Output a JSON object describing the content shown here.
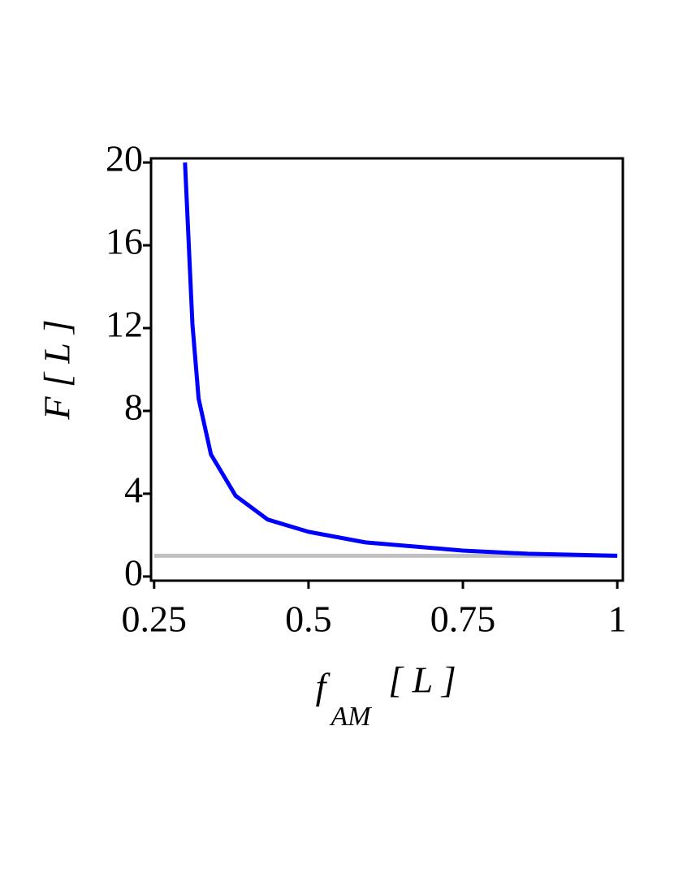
{
  "chart_data": {
    "type": "line",
    "ylabel": "F [ L ]",
    "xlabel": "f",
    "xlabel_sub": "AM",
    "xlabel_unit": "[ L ]",
    "x": [
      0.3,
      0.312,
      0.322,
      0.342,
      0.382,
      0.434,
      0.5,
      0.592,
      0.75,
      0.855,
      1.0
    ],
    "series": [
      {
        "color": "#0000ff",
        "values": [
          20,
          12.2,
          8.6,
          5.9,
          3.9,
          2.75,
          2.16,
          1.65,
          1.25,
          1.1,
          1.0
        ]
      }
    ],
    "reference": {
      "color": "#c0c0c0",
      "x": [
        0.25,
        1.0
      ],
      "values": [
        1,
        1
      ]
    },
    "xlim": [
      0.245,
      1.009
    ],
    "ylim": [
      -0.2,
      20.2
    ],
    "xticks": [
      0.25,
      0.5,
      0.75,
      1
    ],
    "yticks": [
      0,
      4,
      8,
      12,
      16,
      20
    ]
  }
}
